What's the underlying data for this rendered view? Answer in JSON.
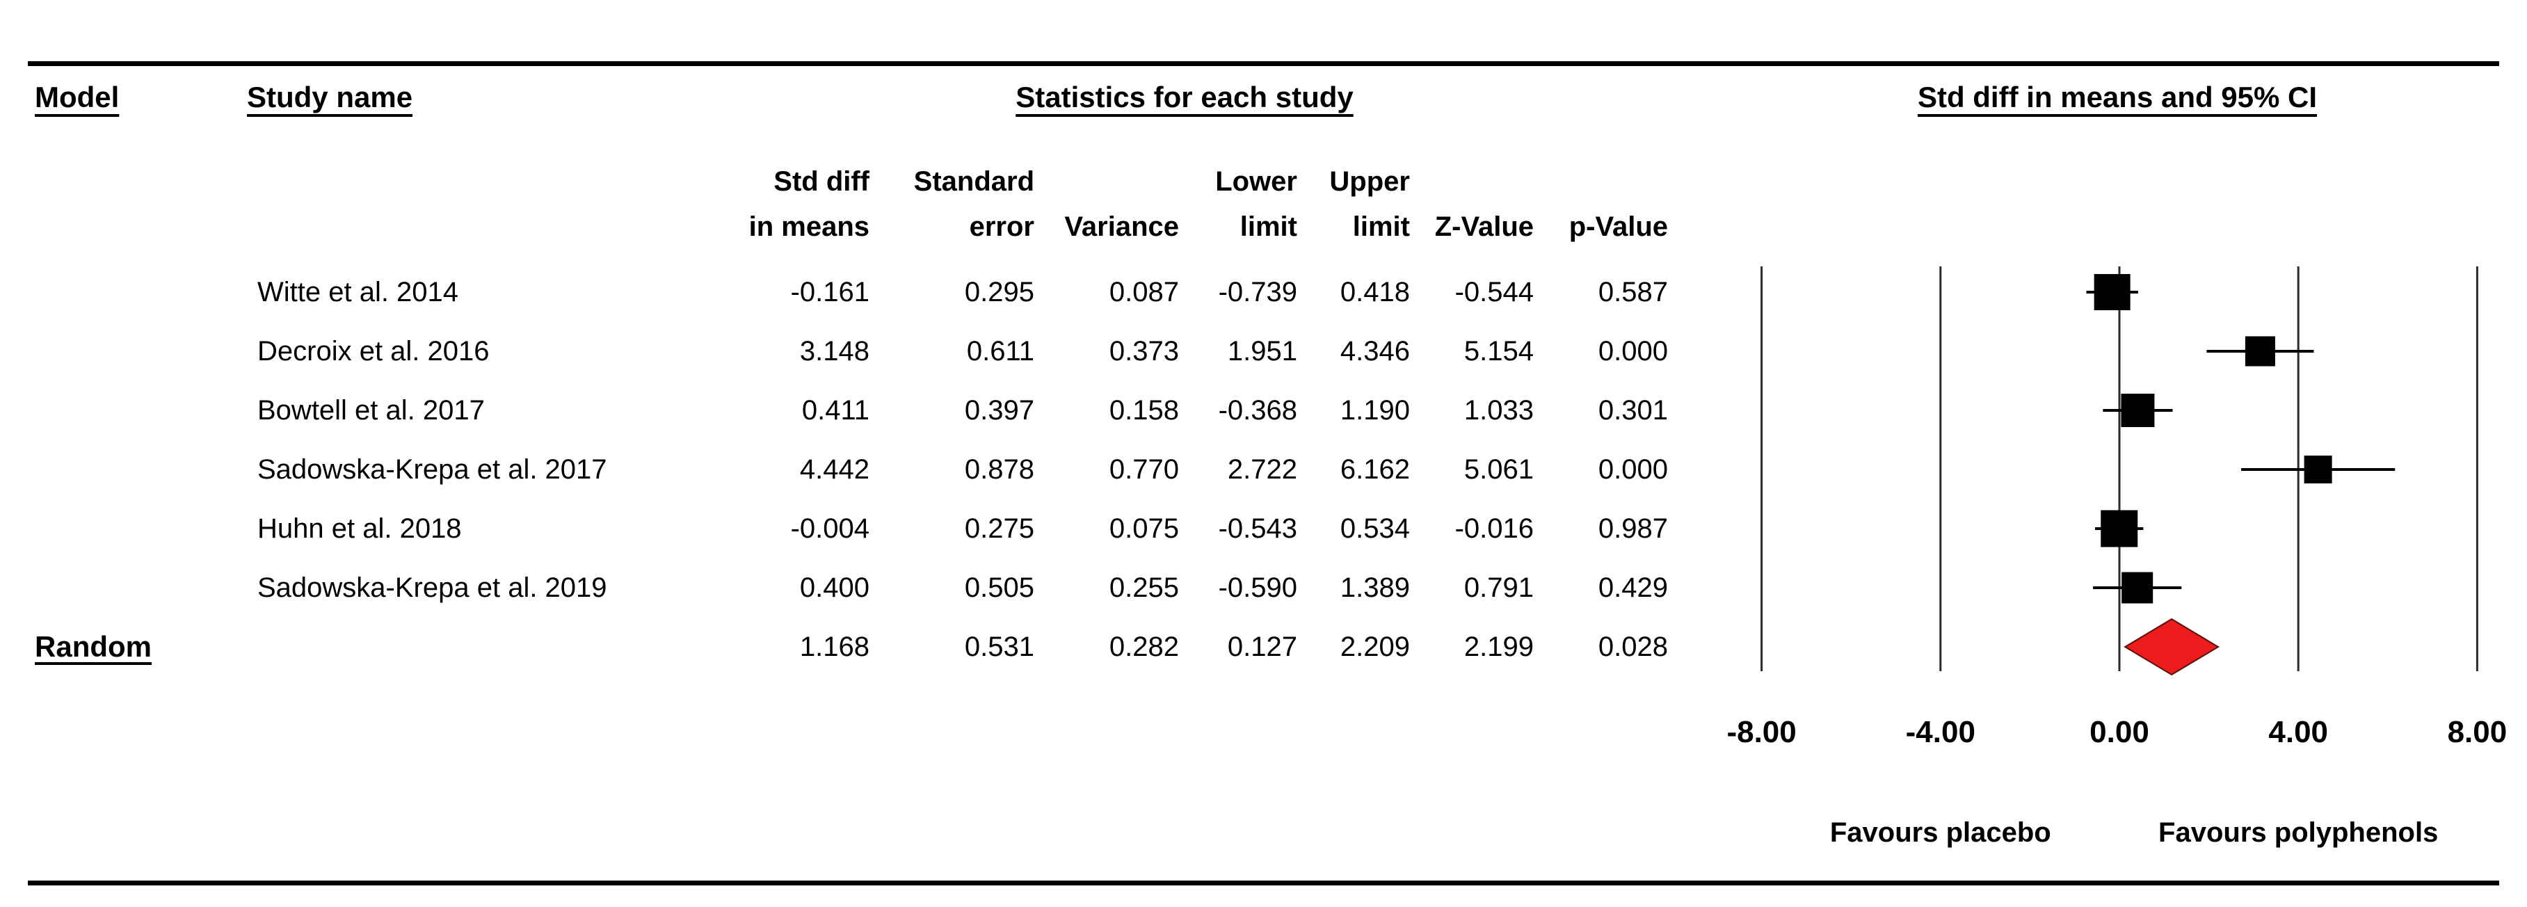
{
  "header": {
    "model_label": "Model",
    "study_name_label": "Study name",
    "stats_title": "Statistics for each study",
    "plot_title": "Std diff in means and 95% CI"
  },
  "table": {
    "column_headers": [
      {
        "id": "std_diff_in_means",
        "line1": "Std diff",
        "line2": "in means"
      },
      {
        "id": "standard_error",
        "line1": "Standard",
        "line2": "error"
      },
      {
        "id": "variance",
        "line1": "",
        "line2": "Variance"
      },
      {
        "id": "lower_limit",
        "line1": "Lower",
        "line2": "limit"
      },
      {
        "id": "upper_limit",
        "line1": "Upper",
        "line2": "limit"
      },
      {
        "id": "z_value",
        "line1": "",
        "line2": "Z-Value"
      },
      {
        "id": "p_value",
        "line1": "",
        "line2": "p-Value"
      }
    ]
  },
  "chart_data": {
    "type": "forest",
    "title": "Std diff in means and 95% CI",
    "xlim": [
      -8,
      8
    ],
    "xticks": [
      -8,
      -4,
      0,
      4,
      8
    ],
    "xtick_labels": [
      "-8.00",
      "-4.00",
      "0.00",
      "4.00",
      "8.00"
    ],
    "footer_labels": {
      "left": "Favours placebo",
      "right": "Favours polyphenols"
    },
    "rows": [
      {
        "model": "",
        "study": "Witte et al. 2014",
        "std_diff_in_means": -0.161,
        "standard_error": 0.295,
        "variance": 0.087,
        "lower_limit": -0.739,
        "upper_limit": 0.418,
        "z_value": -0.544,
        "p_value": 0.587,
        "marker": "square"
      },
      {
        "model": "",
        "study": "Decroix et al. 2016",
        "std_diff_in_means": 3.148,
        "standard_error": 0.611,
        "variance": 0.373,
        "lower_limit": 1.951,
        "upper_limit": 4.346,
        "z_value": 5.154,
        "p_value": 0.0,
        "marker": "square"
      },
      {
        "model": "",
        "study": "Bowtell et al. 2017",
        "std_diff_in_means": 0.411,
        "standard_error": 0.397,
        "variance": 0.158,
        "lower_limit": -0.368,
        "upper_limit": 1.19,
        "z_value": 1.033,
        "p_value": 0.301,
        "marker": "square"
      },
      {
        "model": "",
        "study": "Sadowska-Krepa et al. 2017",
        "std_diff_in_means": 4.442,
        "standard_error": 0.878,
        "variance": 0.77,
        "lower_limit": 2.722,
        "upper_limit": 6.162,
        "z_value": 5.061,
        "p_value": 0.0,
        "marker": "square"
      },
      {
        "model": "",
        "study": "Huhn et al. 2018",
        "std_diff_in_means": -0.004,
        "standard_error": 0.275,
        "variance": 0.075,
        "lower_limit": -0.543,
        "upper_limit": 0.534,
        "z_value": -0.016,
        "p_value": 0.987,
        "marker": "square"
      },
      {
        "model": "",
        "study": "Sadowska-Krepa et al. 2019",
        "std_diff_in_means": 0.4,
        "standard_error": 0.505,
        "variance": 0.255,
        "lower_limit": -0.59,
        "upper_limit": 1.389,
        "z_value": 0.791,
        "p_value": 0.429,
        "marker": "square"
      },
      {
        "model": "Random",
        "study": "",
        "std_diff_in_means": 1.168,
        "standard_error": 0.531,
        "variance": 0.282,
        "lower_limit": 0.127,
        "upper_limit": 2.209,
        "z_value": 2.199,
        "p_value": 0.028,
        "marker": "diamond"
      }
    ],
    "colors": {
      "marker": "#000000",
      "ci_line": "#000000",
      "gridline": "#2b2b2b",
      "diamond_fill": "#ed1c1c",
      "diamond_stroke": "#5a0e0e",
      "text": "#000000"
    }
  }
}
